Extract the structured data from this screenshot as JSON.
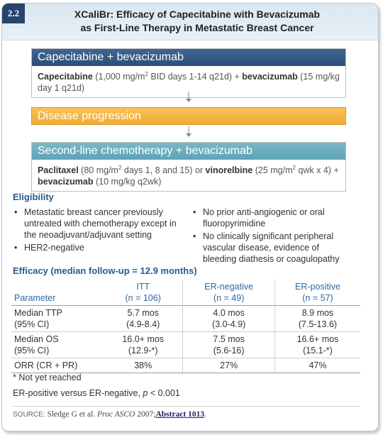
{
  "header": {
    "tag": "2.2",
    "title_line1": "XCaliBr: Efficacy of Capecitabine with Bevacizumab",
    "title_line2": "as First-Line Therapy in Metastatic Breast Cancer"
  },
  "flow": {
    "step1": {
      "title": "Capecitabine + bevacizumab",
      "drug1": "Capecitabine",
      "dose1_pre": " (1,000 mg/m",
      "sup": "2",
      "dose1_post": " BID days 1-14 q21d) + ",
      "drug2": "bevacizumab",
      "dose2": " (15 mg/kg day 1 q21d)"
    },
    "step2": {
      "title": "Disease progression"
    },
    "step3": {
      "title": "Second-line chemotherapy + bevacizumab",
      "drug1": "Paclitaxel",
      "dose1_pre": " (80 mg/m",
      "sup1": "2",
      "dose1_post": " days 1, 8 and 15) or ",
      "drug2": "vinorelbine",
      "dose2_pre": " (25 mg/m",
      "sup2": "2",
      "dose2_post": " qwk x 4) +",
      "drug3": "bevacizumab",
      "dose3": " (10 mg/kg q2wk)"
    }
  },
  "eligibility": {
    "title": "Eligibility",
    "left": [
      "Metastatic breast cancer previously untreated with chemotherapy except in the neoadjuvant/adjuvant setting",
      "HER2-negative"
    ],
    "right": [
      "No prior anti-angiogenic or oral fluoropyrimidine",
      "No clinically significant peripheral vascular disease, evidence of bleeding diathesis or coagulopathy"
    ]
  },
  "efficacy": {
    "title": "Efficacy (median follow-up = 12.9 months)",
    "columns": [
      {
        "name": "ITT",
        "n": "(n = 106)"
      },
      {
        "name": "ER-negative",
        "n": "(n = 49)"
      },
      {
        "name": "ER-positive",
        "n": "(n = 57)"
      }
    ],
    "param_header": "Parameter",
    "rows": [
      {
        "label1": "Median TTP",
        "label2": "(95% CI)",
        "values": [
          [
            "5.7 mos",
            "(4.9-8.4)"
          ],
          [
            "4.0 mos",
            "(3.0-4.9)"
          ],
          [
            "8.9 mos",
            "(7.5-13.6)"
          ]
        ]
      },
      {
        "label1": "Median OS",
        "label2": "(95% CI)",
        "values": [
          [
            "16.0+ mos",
            "(12.9-*)"
          ],
          [
            "7.5 mos",
            "(5.6-16)"
          ],
          [
            "16.6+ mos",
            "(15.1-*)"
          ]
        ]
      },
      {
        "label1": "ORR (CR + PR)",
        "label2": "",
        "values": [
          [
            "38%",
            ""
          ],
          [
            "27%",
            ""
          ],
          [
            "47%",
            ""
          ]
        ]
      }
    ]
  },
  "notes": {
    "footnote": "* Not yet reached",
    "comparison_pre": "ER-positive versus ER-negative, ",
    "comparison_p": "p",
    "comparison_post": " < 0.001"
  },
  "source": {
    "label": "SOURCE:",
    "authors": " Sledge G et al. ",
    "journal": "Proc ASCO",
    "year": " 2007;",
    "link": "Abstract 1013",
    "end": "."
  },
  "colors": {
    "navy": "#26456e",
    "blue_box": "#2c4e7a",
    "orange_box": "#f2aa33",
    "teal_box": "#5ea3b5",
    "section_title": "#2a5a8c"
  }
}
